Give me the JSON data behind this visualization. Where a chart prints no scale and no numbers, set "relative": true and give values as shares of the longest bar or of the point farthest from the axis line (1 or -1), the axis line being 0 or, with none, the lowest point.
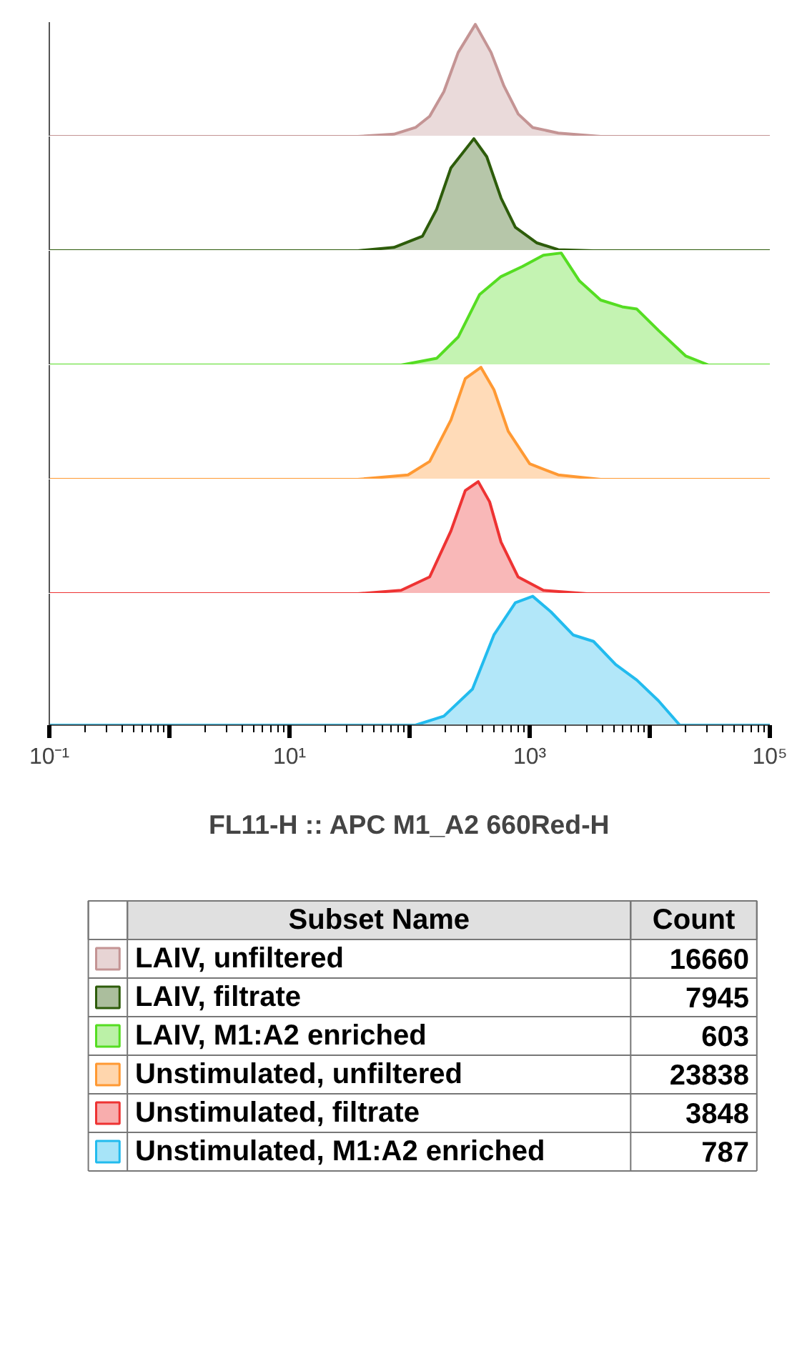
{
  "chart_data": [
    {
      "type": "area",
      "relative": true,
      "xlim": [
        0.1,
        100000
      ],
      "log": "x",
      "tick_labels": false,
      "series": [
        {
          "color": "#c49494",
          "x": [
            0.1,
            37,
            74,
            112,
            147,
            193,
            254,
            353,
            477,
            611,
            803,
            1060,
            1730,
            3900,
            100000
          ],
          "values": [
            0,
            0,
            0.02,
            0.08,
            0.18,
            0.4,
            0.75,
            1,
            0.75,
            0.45,
            0.2,
            0.08,
            0.03,
            0,
            0
          ]
        }
      ]
    },
    {
      "type": "area",
      "relative": true,
      "xlim": [
        0.1,
        100000
      ],
      "log": "x",
      "tick_labels": false,
      "series": [
        {
          "color": "#2d5c0a",
          "x": [
            0.1,
            37,
            74,
            128,
            168,
            221,
            343,
            439,
            578,
            760,
            1150,
            1730,
            3400,
            100000
          ],
          "values": [
            0,
            0,
            0.03,
            0.13,
            0.37,
            0.74,
            1,
            0.84,
            0.47,
            0.21,
            0.07,
            0.01,
            0,
            0
          ]
        }
      ]
    },
    {
      "type": "area",
      "relative": true,
      "xlim": [
        0.1,
        100000
      ],
      "log": "x",
      "tick_labels": false,
      "series": [
        {
          "color": "#55dd22",
          "x": [
            0.1,
            85,
            168,
            254,
            383,
            578,
            870,
            1300,
            1830,
            2600,
            3900,
            5900,
            7800,
            11800,
            20000,
            31000,
            100000
          ],
          "values": [
            0,
            0,
            0.06,
            0.25,
            0.63,
            0.79,
            0.88,
            0.98,
            1,
            0.75,
            0.58,
            0.52,
            0.5,
            0.31,
            0.08,
            0,
            0
          ]
        }
      ]
    },
    {
      "type": "area",
      "relative": true,
      "xlim": [
        0.1,
        100000
      ],
      "log": "x",
      "tick_labels": false,
      "series": [
        {
          "color": "#ff9933",
          "x": [
            0.1,
            37,
            97,
            147,
            221,
            291,
            393,
            504,
            663,
            1000,
            1730,
            3900,
            100000
          ],
          "values": [
            0,
            0,
            0.04,
            0.16,
            0.53,
            0.9,
            1,
            0.8,
            0.43,
            0.14,
            0.04,
            0,
            0
          ]
        }
      ]
    },
    {
      "type": "area",
      "relative": true,
      "xlim": [
        0.1,
        100000
      ],
      "log": "x",
      "tick_labels": false,
      "series": [
        {
          "color": "#ee3333",
          "x": [
            0.1,
            37,
            85,
            147,
            221,
            291,
            373,
            464,
            578,
            800,
            1300,
            3000,
            100000
          ],
          "values": [
            0,
            0,
            0.03,
            0.15,
            0.56,
            0.92,
            1,
            0.82,
            0.46,
            0.15,
            0.03,
            0,
            0
          ]
        }
      ]
    },
    {
      "type": "area",
      "relative": true,
      "xlim": [
        0.1,
        100000
      ],
      "log": "x",
      "tick_labels": "x",
      "xlabel": "FL11-H :: APC M1_A2 660Red-H",
      "xticks": [
        {
          "value": 0.1,
          "label": "10⁻¹"
        },
        {
          "value": 1,
          "label": null
        },
        {
          "value": 10,
          "label": "10¹"
        },
        {
          "value": 100,
          "label": null
        },
        {
          "value": 1000,
          "label": "10³"
        },
        {
          "value": 10000,
          "label": null
        },
        {
          "value": 100000,
          "label": "10⁵"
        }
      ],
      "series": [
        {
          "color": "#22bbee",
          "x": [
            0.1,
            112,
            193,
            334,
            504,
            760,
            1060,
            1500,
            2300,
            3400,
            5200,
            7800,
            11800,
            17800,
            100000
          ],
          "values": [
            0,
            0,
            0.07,
            0.28,
            0.7,
            0.95,
            1,
            0.88,
            0.7,
            0.65,
            0.47,
            0.35,
            0.19,
            0,
            0
          ]
        }
      ]
    },
    {
      "type": "other",
      "annotations": [
        "Subset Name",
        "Count"
      ],
      "data_labels": true,
      "categories": [
        "LAIV, unfiltered",
        "LAIV, filtrate",
        "LAIV, M1:A2 enriched",
        "Unstimulated, unfiltered",
        "Unstimulated, filtrate",
        "Unstimulated, M1:A2 enriched"
      ],
      "values": [
        16660,
        7945,
        603,
        23838,
        3848,
        787
      ],
      "colors": [
        "#c49494",
        "#2d5c0a",
        "#55dd22",
        "#ff9933",
        "#ee3333",
        "#22bbee"
      ]
    }
  ]
}
